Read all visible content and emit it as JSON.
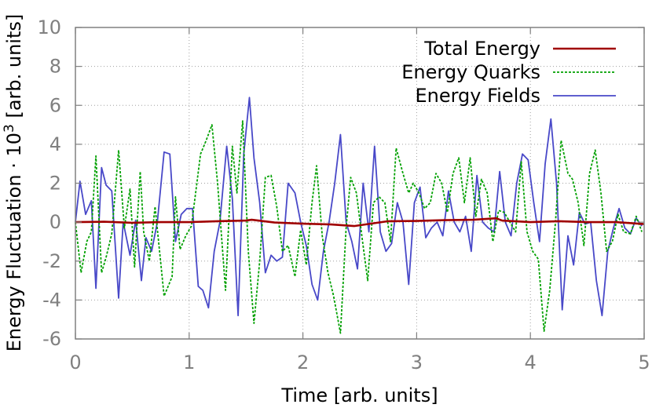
{
  "chart_data": {
    "type": "line",
    "title": "",
    "xlabel": "Time [arb. units]",
    "ylabel": {
      "prefix": "Energy Fluctuation · 10",
      "exponent": "3",
      "suffix": " [arb. units]"
    },
    "xlim": [
      0,
      5
    ],
    "ylim": [
      -6,
      10
    ],
    "xticks": [
      0,
      1,
      2,
      3,
      4,
      5
    ],
    "yticks": [
      -6,
      -4,
      -2,
      0,
      2,
      4,
      6,
      8,
      10
    ],
    "grid": true,
    "legend_position": "top-right",
    "series": [
      {
        "name": "Total Energy",
        "color": "#a00000",
        "style": "solid",
        "x": [
          0,
          0.25,
          0.5,
          0.75,
          1.0,
          1.25,
          1.5,
          1.55,
          1.75,
          2.0,
          2.25,
          2.45,
          2.75,
          3.0,
          3.25,
          3.5,
          3.7,
          3.75,
          4.0,
          4.25,
          4.5,
          4.75,
          5.0
        ],
        "y": [
          0.0,
          0.02,
          -0.03,
          0.0,
          0.0,
          0.05,
          0.08,
          0.12,
          -0.02,
          -0.08,
          -0.12,
          -0.2,
          0.05,
          0.06,
          0.1,
          0.12,
          0.2,
          0.08,
          0.0,
          0.05,
          0.0,
          0.0,
          -0.1
        ]
      },
      {
        "name": "Energy Quarks",
        "color": "#00a000",
        "style": "dashed",
        "x": [
          0.0,
          0.05,
          0.1,
          0.14,
          0.18,
          0.23,
          0.27,
          0.32,
          0.38,
          0.43,
          0.48,
          0.52,
          0.57,
          0.6,
          0.65,
          0.7,
          0.78,
          0.85,
          0.88,
          0.92,
          0.97,
          1.02,
          1.1,
          1.15,
          1.2,
          1.25,
          1.32,
          1.38,
          1.42,
          1.47,
          1.52,
          1.57,
          1.62,
          1.67,
          1.72,
          1.77,
          1.82,
          1.87,
          1.93,
          1.98,
          2.03,
          2.08,
          2.12,
          2.17,
          2.22,
          2.27,
          2.33,
          2.38,
          2.42,
          2.47,
          2.52,
          2.57,
          2.62,
          2.67,
          2.72,
          2.77,
          2.82,
          2.88,
          2.93,
          2.97,
          3.02,
          3.07,
          3.12,
          3.17,
          3.22,
          3.27,
          3.32,
          3.37,
          3.42,
          3.47,
          3.52,
          3.57,
          3.62,
          3.67,
          3.72,
          3.77,
          3.82,
          3.87,
          3.92,
          3.97,
          4.02,
          4.07,
          4.12,
          4.17,
          4.22,
          4.27,
          4.33,
          4.37,
          4.42,
          4.47,
          4.52,
          4.57,
          4.62,
          4.67,
          4.72,
          4.77,
          4.82,
          4.88,
          4.93,
          4.98
        ],
        "y": [
          0.0,
          -2.6,
          -1.0,
          -0.5,
          3.4,
          -2.6,
          -1.8,
          -0.6,
          3.7,
          -0.3,
          1.7,
          -2.3,
          2.6,
          -0.5,
          -2.0,
          0.8,
          -3.8,
          -2.8,
          1.3,
          -1.4,
          -0.7,
          -0.2,
          3.5,
          4.2,
          5.0,
          2.0,
          -3.5,
          3.9,
          1.5,
          5.2,
          -1.5,
          -5.2,
          -2.0,
          2.3,
          2.4,
          0.8,
          -1.5,
          -1.2,
          -2.8,
          -0.4,
          -2.2,
          1.0,
          2.9,
          -0.7,
          -2.6,
          -3.8,
          -5.7,
          -0.3,
          2.3,
          1.5,
          -0.8,
          -3.0,
          1.0,
          1.3,
          1.0,
          -1.0,
          3.8,
          2.5,
          1.5,
          2.0,
          1.5,
          0.7,
          1.0,
          2.5,
          2.0,
          0.5,
          2.5,
          3.3,
          1.0,
          3.3,
          0.3,
          2.2,
          1.5,
          -1.0,
          0.6,
          0.5,
          0.0,
          -0.5,
          3.1,
          -0.5,
          -1.5,
          -1.9,
          -5.6,
          -3.5,
          0.0,
          4.2,
          2.5,
          2.2,
          1.0,
          -1.2,
          2.5,
          3.7,
          1.5,
          -1.5,
          -1.0,
          0.4,
          -0.5,
          -0.6,
          0.3,
          -0.5
        ]
      },
      {
        "name": "Energy Fields",
        "color": "#4848c8",
        "style": "solid",
        "x": [
          0.0,
          0.04,
          0.09,
          0.14,
          0.18,
          0.23,
          0.27,
          0.32,
          0.38,
          0.42,
          0.48,
          0.53,
          0.58,
          0.62,
          0.67,
          0.72,
          0.78,
          0.83,
          0.88,
          0.93,
          0.98,
          1.03,
          1.08,
          1.12,
          1.17,
          1.22,
          1.27,
          1.33,
          1.38,
          1.43,
          1.48,
          1.53,
          1.57,
          1.62,
          1.67,
          1.72,
          1.77,
          1.82,
          1.87,
          1.93,
          1.98,
          2.03,
          2.08,
          2.13,
          2.18,
          2.23,
          2.28,
          2.33,
          2.38,
          2.43,
          2.48,
          2.53,
          2.58,
          2.63,
          2.68,
          2.73,
          2.78,
          2.83,
          2.88,
          2.93,
          2.98,
          3.03,
          3.08,
          3.13,
          3.18,
          3.23,
          3.28,
          3.33,
          3.38,
          3.43,
          3.48,
          3.53,
          3.58,
          3.63,
          3.68,
          3.73,
          3.78,
          3.83,
          3.88,
          3.93,
          3.98,
          4.03,
          4.08,
          4.13,
          4.18,
          4.23,
          4.28,
          4.33,
          4.38,
          4.43,
          4.48,
          4.53,
          4.58,
          4.63,
          4.68,
          4.73,
          4.78,
          4.83,
          4.88,
          4.93,
          4.98
        ],
        "y": [
          0.0,
          2.1,
          0.4,
          1.1,
          -3.4,
          2.8,
          1.9,
          1.6,
          -3.9,
          0.0,
          -1.7,
          0.1,
          -3.0,
          -0.8,
          -1.5,
          0.0,
          3.6,
          3.5,
          -1.0,
          0.4,
          0.7,
          0.7,
          -3.3,
          -3.5,
          -4.4,
          -1.5,
          0.0,
          3.9,
          1.2,
          -4.8,
          3.5,
          6.4,
          3.3,
          1.0,
          -2.6,
          -1.7,
          -2.0,
          -1.8,
          2.0,
          1.5,
          0.0,
          -1.2,
          -3.2,
          -4.0,
          -1.5,
          0.0,
          2.0,
          4.5,
          0.0,
          -1.0,
          -2.4,
          2.0,
          -0.5,
          3.9,
          -0.5,
          -1.5,
          -1.1,
          1.0,
          0.0,
          -3.2,
          1.0,
          1.8,
          -0.8,
          -0.3,
          0.0,
          -0.7,
          1.6,
          0.0,
          -0.5,
          0.3,
          -1.5,
          2.4,
          0.0,
          -0.3,
          -0.5,
          2.6,
          0.0,
          -0.7,
          2.0,
          3.5,
          3.2,
          1.0,
          -1.0,
          3.0,
          5.3,
          2.0,
          -4.5,
          -0.7,
          -2.2,
          0.5,
          -0.1,
          0.0,
          -3.0,
          -4.8,
          -1.5,
          -0.3,
          0.7,
          -0.3,
          -0.6,
          0.2,
          -0.2
        ]
      }
    ]
  }
}
